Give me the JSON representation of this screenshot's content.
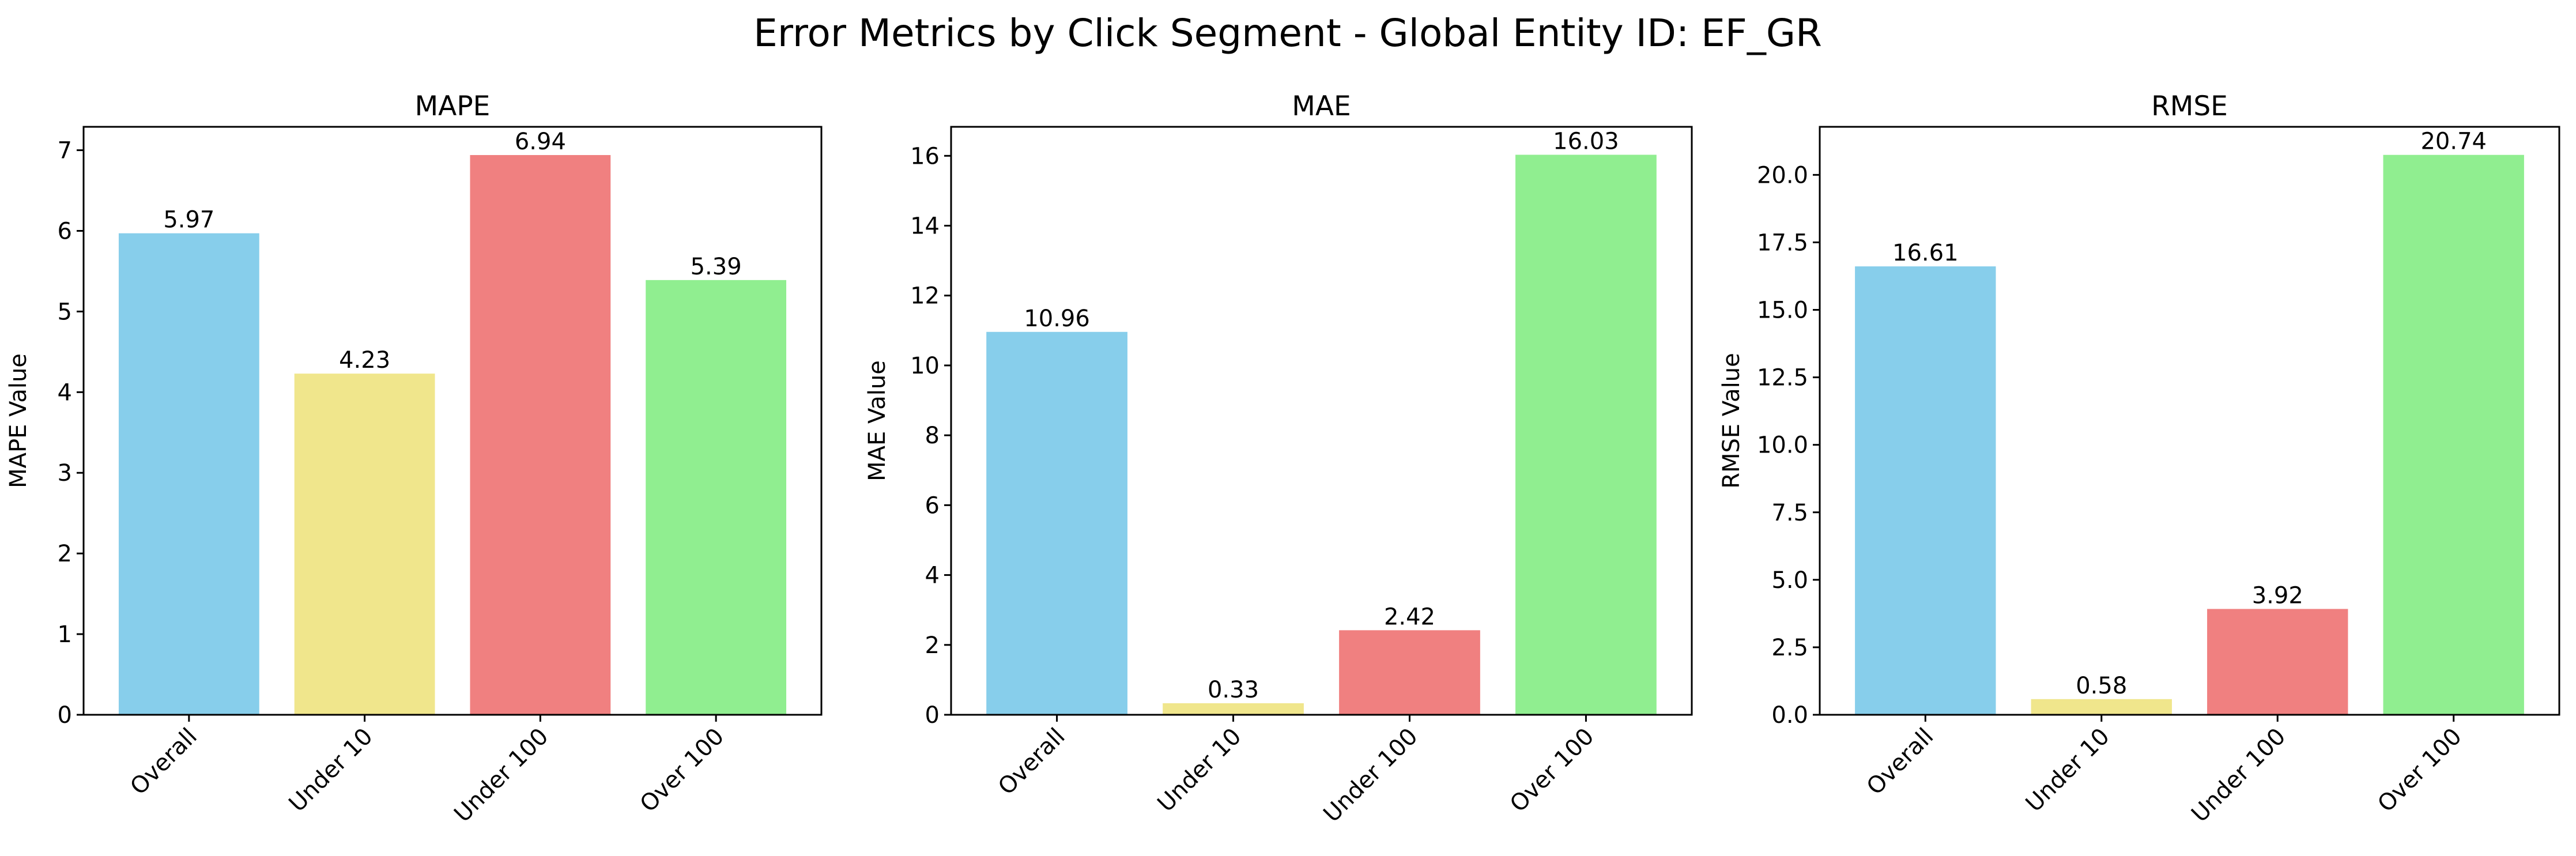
{
  "figure": {
    "title": "Error Metrics by Click Segment - Global Entity ID: EF_GR"
  },
  "chart_data": [
    {
      "type": "bar",
      "title": "MAPE",
      "xlabel": "",
      "ylabel": "MAPE Value",
      "categories": [
        "Overall",
        "Under 10",
        "Under 100",
        "Over 100"
      ],
      "values": [
        5.97,
        4.23,
        6.94,
        5.39
      ],
      "data_labels": [
        "5.97",
        "4.23",
        "6.94",
        "5.39"
      ],
      "colors": [
        "#87CEEB",
        "#F0E68C",
        "#F08080",
        "#90EE90"
      ],
      "ylim": [
        0,
        7.29
      ],
      "yticks": [
        0,
        1,
        2,
        3,
        4,
        5,
        6,
        7
      ],
      "ytick_labels": [
        "0",
        "1",
        "2",
        "3",
        "4",
        "5",
        "6",
        "7"
      ],
      "grid": false
    },
    {
      "type": "bar",
      "title": "MAE",
      "xlabel": "",
      "ylabel": "MAE Value",
      "categories": [
        "Overall",
        "Under 10",
        "Under 100",
        "Over 100"
      ],
      "values": [
        10.96,
        0.33,
        2.42,
        16.03
      ],
      "data_labels": [
        "10.96",
        "0.33",
        "2.42",
        "16.03"
      ],
      "colors": [
        "#87CEEB",
        "#F0E68C",
        "#F08080",
        "#90EE90"
      ],
      "ylim": [
        0,
        16.83
      ],
      "yticks": [
        0,
        2,
        4,
        6,
        8,
        10,
        12,
        14,
        16
      ],
      "ytick_labels": [
        "0",
        "2",
        "4",
        "6",
        "8",
        "10",
        "12",
        "14",
        "16"
      ],
      "grid": false
    },
    {
      "type": "bar",
      "title": "RMSE",
      "xlabel": "",
      "ylabel": "RMSE Value",
      "categories": [
        "Overall",
        "Under 10",
        "Under 100",
        "Over 100"
      ],
      "values": [
        16.61,
        0.58,
        3.92,
        20.74
      ],
      "data_labels": [
        "16.61",
        "0.58",
        "3.92",
        "20.74"
      ],
      "colors": [
        "#87CEEB",
        "#F0E68C",
        "#F08080",
        "#90EE90"
      ],
      "ylim": [
        0,
        21.78
      ],
      "yticks": [
        0,
        2.5,
        5,
        7.5,
        10,
        12.5,
        15,
        17.5,
        20
      ],
      "ytick_labels": [
        "0.0",
        "2.5",
        "5.0",
        "7.5",
        "10.0",
        "12.5",
        "15.0",
        "17.5",
        "20.0"
      ],
      "grid": false
    }
  ]
}
